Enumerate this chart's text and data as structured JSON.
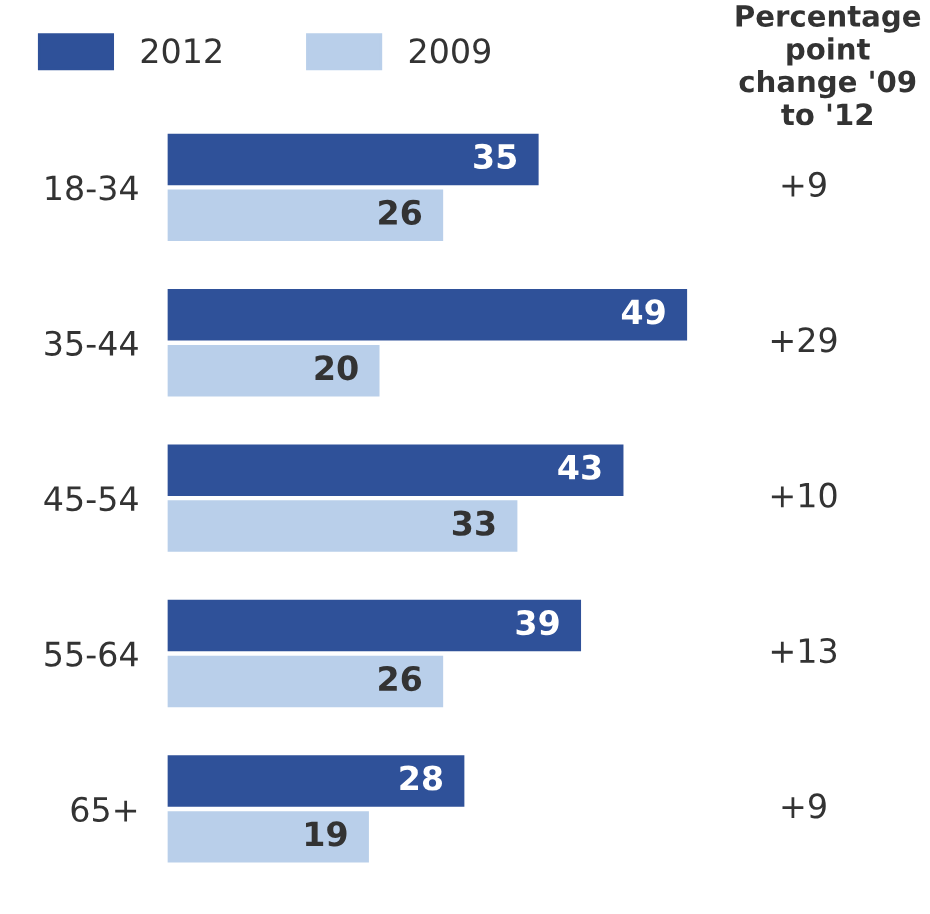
{
  "chart_data": {
    "type": "bar",
    "orientation": "horizontal",
    "categories": [
      "18-34",
      "35-44",
      "45-54",
      "55-64",
      "65+"
    ],
    "series": [
      {
        "name": "2012",
        "color": "#2f5199",
        "values": [
          35,
          49,
          43,
          39,
          28
        ]
      },
      {
        "name": "2009",
        "color": "#b9cfea",
        "values": [
          26,
          20,
          33,
          26,
          19
        ]
      }
    ],
    "data_labels": true,
    "legend": "top left",
    "grid": false,
    "tick_labels": "y",
    "annotations": [
      "Percentage point change '09 to '12",
      "+9",
      "+29",
      "+10",
      "+13",
      "+9"
    ]
  }
}
